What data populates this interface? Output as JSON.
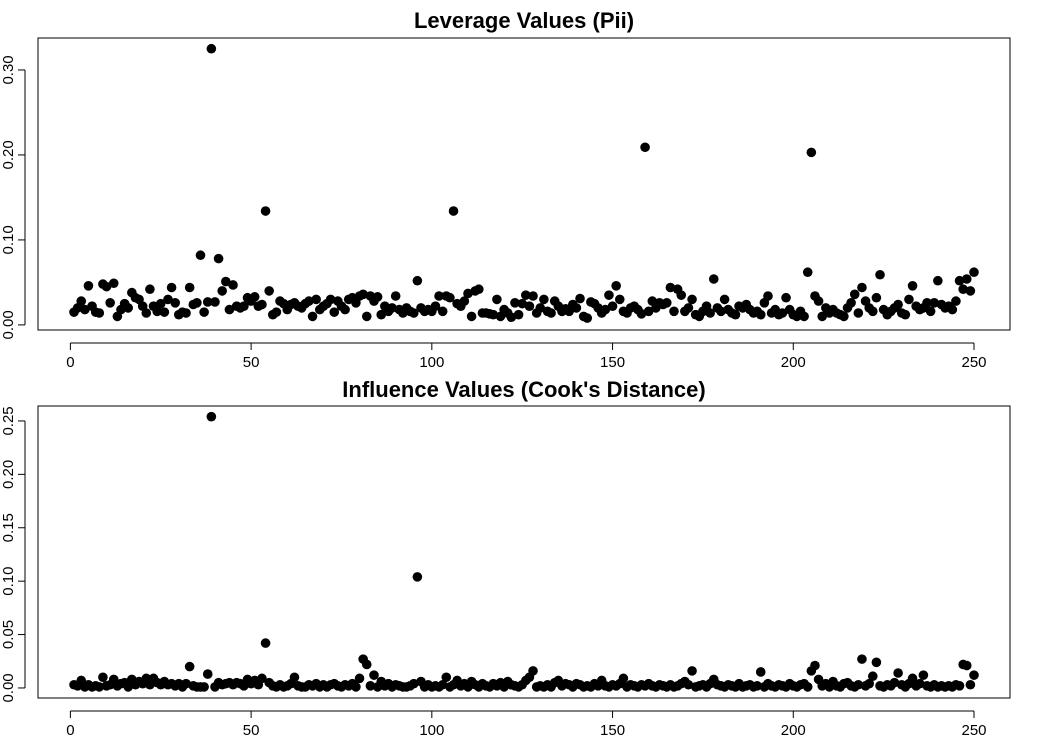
{
  "chart_data": [
    {
      "type": "scatter",
      "title": "Leverage Values (Pii)",
      "color": "#000000",
      "x": [
        1,
        2,
        3,
        4,
        5,
        6,
        7,
        8,
        9,
        10,
        11,
        12,
        13,
        14,
        15,
        16,
        17,
        18,
        19,
        20,
        21,
        22,
        23,
        24,
        25,
        26,
        27,
        28,
        29,
        30,
        31,
        32,
        33,
        34,
        35,
        36,
        37,
        38,
        39,
        40,
        41,
        42,
        43,
        44,
        45,
        46,
        47,
        48,
        49,
        50,
        51,
        52,
        53,
        54,
        55,
        56,
        57,
        58,
        59,
        60,
        61,
        62,
        63,
        64,
        65,
        66,
        67,
        68,
        69,
        70,
        71,
        72,
        73,
        74,
        75,
        76,
        77,
        78,
        79,
        80,
        81,
        82,
        83,
        84,
        85,
        86,
        87,
        88,
        89,
        90,
        91,
        92,
        93,
        94,
        95,
        96,
        97,
        98,
        99,
        100,
        101,
        102,
        103,
        104,
        105,
        106,
        107,
        108,
        109,
        110,
        111,
        112,
        113,
        114,
        115,
        116,
        117,
        118,
        119,
        120,
        121,
        122,
        123,
        124,
        125,
        126,
        127,
        128,
        129,
        130,
        131,
        132,
        133,
        134,
        135,
        136,
        137,
        138,
        139,
        140,
        141,
        142,
        143,
        144,
        145,
        146,
        147,
        148,
        149,
        150,
        151,
        152,
        153,
        154,
        155,
        156,
        157,
        158,
        159,
        160,
        161,
        162,
        163,
        164,
        165,
        166,
        167,
        168,
        169,
        170,
        171,
        172,
        173,
        174,
        175,
        176,
        177,
        178,
        179,
        180,
        181,
        182,
        183,
        184,
        185,
        186,
        187,
        188,
        189,
        190,
        191,
        192,
        193,
        194,
        195,
        196,
        197,
        198,
        199,
        200,
        201,
        202,
        203,
        204,
        205,
        206,
        207,
        208,
        209,
        210,
        211,
        212,
        213,
        214,
        215,
        216,
        217,
        218,
        219,
        220,
        221,
        222,
        223,
        224,
        225,
        226,
        227,
        228,
        229,
        230,
        231,
        232,
        233,
        234,
        235,
        236,
        237,
        238,
        239,
        240,
        241,
        242,
        243,
        244,
        245,
        246,
        247,
        248,
        249,
        250
      ],
      "values": [
        0.015,
        0.02,
        0.028,
        0.018,
        0.046,
        0.022,
        0.015,
        0.014,
        0.048,
        0.045,
        0.026,
        0.049,
        0.01,
        0.018,
        0.025,
        0.02,
        0.038,
        0.032,
        0.03,
        0.022,
        0.014,
        0.042,
        0.022,
        0.016,
        0.025,
        0.015,
        0.03,
        0.044,
        0.026,
        0.012,
        0.015,
        0.014,
        0.044,
        0.024,
        0.026,
        0.082,
        0.015,
        0.027,
        0.325,
        0.027,
        0.078,
        0.04,
        0.051,
        0.018,
        0.047,
        0.022,
        0.02,
        0.022,
        0.032,
        0.028,
        0.033,
        0.022,
        0.024,
        0.134,
        0.04,
        0.012,
        0.015,
        0.028,
        0.025,
        0.018,
        0.024,
        0.026,
        0.022,
        0.02,
        0.025,
        0.028,
        0.01,
        0.03,
        0.018,
        0.022,
        0.025,
        0.03,
        0.015,
        0.028,
        0.022,
        0.018,
        0.03,
        0.032,
        0.026,
        0.034,
        0.036,
        0.01,
        0.034,
        0.028,
        0.033,
        0.012,
        0.022,
        0.016,
        0.02,
        0.034,
        0.018,
        0.014,
        0.02,
        0.016,
        0.014,
        0.052,
        0.02,
        0.016,
        0.018,
        0.016,
        0.022,
        0.034,
        0.016,
        0.034,
        0.032,
        0.134,
        0.025,
        0.022,
        0.028,
        0.037,
        0.01,
        0.04,
        0.042,
        0.014,
        0.014,
        0.013,
        0.012,
        0.03,
        0.01,
        0.018,
        0.014,
        0.009,
        0.026,
        0.012,
        0.025,
        0.035,
        0.022,
        0.034,
        0.014,
        0.02,
        0.03,
        0.016,
        0.014,
        0.028,
        0.022,
        0.016,
        0.019,
        0.016,
        0.024,
        0.02,
        0.031,
        0.01,
        0.008,
        0.027,
        0.025,
        0.02,
        0.014,
        0.018,
        0.035,
        0.022,
        0.046,
        0.03,
        0.016,
        0.014,
        0.02,
        0.022,
        0.018,
        0.013,
        0.209,
        0.016,
        0.028,
        0.02,
        0.026,
        0.024,
        0.026,
        0.044,
        0.016,
        0.042,
        0.035,
        0.016,
        0.02,
        0.03,
        0.012,
        0.01,
        0.016,
        0.022,
        0.014,
        0.054,
        0.02,
        0.016,
        0.03,
        0.018,
        0.014,
        0.012,
        0.022,
        0.02,
        0.024,
        0.018,
        0.014,
        0.016,
        0.012,
        0.026,
        0.034,
        0.014,
        0.018,
        0.012,
        0.014,
        0.032,
        0.018,
        0.012,
        0.01,
        0.016,
        0.01,
        0.062,
        0.203,
        0.034,
        0.028,
        0.01,
        0.02,
        0.014,
        0.018,
        0.014,
        0.012,
        0.01,
        0.02,
        0.026,
        0.036,
        0.014,
        0.044,
        0.028,
        0.02,
        0.016,
        0.032,
        0.059,
        0.018,
        0.012,
        0.016,
        0.02,
        0.024,
        0.014,
        0.012,
        0.03,
        0.046,
        0.022,
        0.018,
        0.02,
        0.026,
        0.016,
        0.026,
        0.052,
        0.024,
        0.02,
        0.022,
        0.018,
        0.028,
        0.052,
        0.042,
        0.054,
        0.04,
        0.062
      ],
      "xlim": [
        -8.96,
        259.96
      ],
      "xticks": [
        0,
        50,
        100,
        150,
        200,
        250
      ],
      "ylim": [
        -0.006,
        0.3376
      ],
      "yticks": [
        {
          "value": 0,
          "label": "0.00"
        },
        {
          "value": 0.1,
          "label": "0.10"
        },
        {
          "value": 0.2,
          "label": "0.20"
        },
        {
          "value": 0.3,
          "label": "0.30"
        }
      ]
    },
    {
      "type": "scatter",
      "title": "Influence Values (Cook's Distance)",
      "color": "#000000",
      "x": [
        1,
        2,
        3,
        4,
        5,
        6,
        7,
        8,
        9,
        10,
        11,
        12,
        13,
        14,
        15,
        16,
        17,
        18,
        19,
        20,
        21,
        22,
        23,
        24,
        25,
        26,
        27,
        28,
        29,
        30,
        31,
        32,
        33,
        34,
        35,
        36,
        37,
        38,
        39,
        40,
        41,
        42,
        43,
        44,
        45,
        46,
        47,
        48,
        49,
        50,
        51,
        52,
        53,
        54,
        55,
        56,
        57,
        58,
        59,
        60,
        61,
        62,
        63,
        64,
        65,
        66,
        67,
        68,
        69,
        70,
        71,
        72,
        73,
        74,
        75,
        76,
        77,
        78,
        79,
        80,
        81,
        82,
        83,
        84,
        85,
        86,
        87,
        88,
        89,
        90,
        91,
        92,
        93,
        94,
        95,
        96,
        97,
        98,
        99,
        100,
        101,
        102,
        103,
        104,
        105,
        106,
        107,
        108,
        109,
        110,
        111,
        112,
        113,
        114,
        115,
        116,
        117,
        118,
        119,
        120,
        121,
        122,
        123,
        124,
        125,
        126,
        127,
        128,
        129,
        130,
        131,
        132,
        133,
        134,
        135,
        136,
        137,
        138,
        139,
        140,
        141,
        142,
        143,
        144,
        145,
        146,
        147,
        148,
        149,
        150,
        151,
        152,
        153,
        154,
        155,
        156,
        157,
        158,
        159,
        160,
        161,
        162,
        163,
        164,
        165,
        166,
        167,
        168,
        169,
        170,
        171,
        172,
        173,
        174,
        175,
        176,
        177,
        178,
        179,
        180,
        181,
        182,
        183,
        184,
        185,
        186,
        187,
        188,
        189,
        190,
        191,
        192,
        193,
        194,
        195,
        196,
        197,
        198,
        199,
        200,
        201,
        202,
        203,
        204,
        205,
        206,
        207,
        208,
        209,
        210,
        211,
        212,
        213,
        214,
        215,
        216,
        217,
        218,
        219,
        220,
        221,
        222,
        223,
        224,
        225,
        226,
        227,
        228,
        229,
        230,
        231,
        232,
        233,
        234,
        235,
        236,
        237,
        238,
        239,
        240,
        241,
        242,
        243,
        244,
        245,
        246,
        247,
        248,
        249,
        250
      ],
      "values": [
        0.003,
        0.002,
        0.007,
        0.001,
        0.003,
        0.001,
        0.002,
        0.001,
        0.01,
        0.002,
        0.003,
        0.008,
        0.002,
        0.004,
        0.005,
        0.001,
        0.008,
        0.003,
        0.006,
        0.004,
        0.009,
        0.003,
        0.009,
        0.005,
        0.003,
        0.006,
        0.003,
        0.004,
        0.002,
        0.004,
        0.001,
        0.004,
        0.02,
        0.002,
        0.001,
        0.001,
        0.001,
        0.013,
        0.254,
        0.001,
        0.005,
        0.003,
        0.004,
        0.005,
        0.003,
        0.005,
        0.004,
        0.002,
        0.008,
        0.004,
        0.007,
        0.003,
        0.009,
        0.042,
        0.005,
        0.002,
        0.001,
        0.003,
        0.001,
        0.002,
        0.004,
        0.01,
        0.002,
        0.001,
        0.001,
        0.003,
        0.002,
        0.004,
        0.001,
        0.003,
        0.001,
        0.003,
        0.004,
        0.002,
        0.001,
        0.003,
        0.002,
        0.004,
        0.001,
        0.009,
        0.027,
        0.022,
        0.002,
        0.012,
        0.001,
        0.006,
        0.002,
        0.004,
        0.001,
        0.003,
        0.002,
        0.001,
        0.001,
        0.002,
        0.004,
        0.104,
        0.006,
        0.001,
        0.003,
        0.001,
        0.002,
        0.001,
        0.003,
        0.01,
        0.001,
        0.003,
        0.007,
        0.002,
        0.004,
        0.001,
        0.006,
        0.003,
        0.001,
        0.004,
        0.002,
        0.001,
        0.004,
        0.002,
        0.005,
        0.001,
        0.006,
        0.003,
        0.002,
        0.001,
        0.003,
        0.007,
        0.01,
        0.016,
        0.001,
        0.002,
        0.001,
        0.003,
        0.001,
        0.005,
        0.007,
        0.002,
        0.004,
        0.003,
        0.001,
        0.004,
        0.003,
        0.001,
        0.002,
        0.001,
        0.004,
        0.002,
        0.007,
        0.002,
        0.001,
        0.003,
        0.002,
        0.004,
        0.009,
        0.001,
        0.003,
        0.002,
        0.001,
        0.003,
        0.002,
        0.004,
        0.002,
        0.001,
        0.003,
        0.002,
        0.001,
        0.003,
        0.001,
        0.002,
        0.004,
        0.006,
        0.003,
        0.016,
        0.001,
        0.002,
        0.003,
        0.001,
        0.004,
        0.008,
        0.003,
        0.002,
        0.001,
        0.003,
        0.002,
        0.001,
        0.004,
        0.001,
        0.002,
        0.003,
        0.001,
        0.002,
        0.015,
        0.001,
        0.004,
        0.002,
        0.001,
        0.003,
        0.002,
        0.001,
        0.004,
        0.002,
        0.001,
        0.003,
        0.004,
        0.001,
        0.016,
        0.021,
        0.008,
        0.002,
        0.004,
        0.001,
        0.006,
        0.002,
        0.001,
        0.004,
        0.005,
        0.002,
        0.001,
        0.003,
        0.027,
        0.002,
        0.004,
        0.011,
        0.024,
        0.002,
        0.001,
        0.003,
        0.002,
        0.005,
        0.014,
        0.003,
        0.001,
        0.004,
        0.009,
        0.002,
        0.004,
        0.012,
        0.002,
        0.001,
        0.003,
        0.001,
        0.002,
        0.001,
        0.002,
        0.001,
        0.003,
        0.002,
        0.022,
        0.021,
        0.003,
        0.012
      ],
      "xlim": [
        -8.96,
        259.96
      ],
      "xticks": [
        0,
        50,
        100,
        150,
        200,
        250
      ],
      "ylim": [
        -0.0094,
        0.264
      ],
      "yticks": [
        {
          "value": 0,
          "label": "0.00"
        },
        0.05,
        {
          "value": 0.1,
          "label": "0.10"
        },
        0.15,
        {
          "value": 0.2,
          "label": "0.20"
        },
        0.25
      ]
    }
  ]
}
